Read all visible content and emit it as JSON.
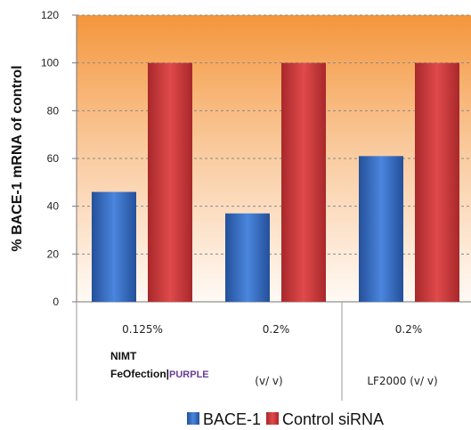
{
  "chart_data": {
    "type": "bar",
    "ylabel": "% BACE-1 mRNA of control",
    "ylim": [
      0,
      120
    ],
    "yticks": [
      0,
      20,
      40,
      60,
      80,
      100,
      120
    ],
    "grid": "horizontal dashed",
    "legend_position": "bottom",
    "categories": [
      "0.125%",
      "0.2%",
      "0.2%"
    ],
    "group_labels": [
      {
        "line1": "NIMT",
        "line2a": "FeOfection|",
        "line2b": "PURPLE",
        "unit": "(v/ v)"
      },
      {
        "line1": "",
        "line2a": "",
        "line2b": "",
        "unit": "LF2000 (v/ v)"
      }
    ],
    "series": [
      {
        "name": "BACE-1",
        "values": [
          46,
          37,
          61
        ],
        "color": "#3a6fc4"
      },
      {
        "name": "Control siRNA",
        "values": [
          100,
          100,
          100
        ],
        "color": "#d0393b"
      }
    ]
  }
}
